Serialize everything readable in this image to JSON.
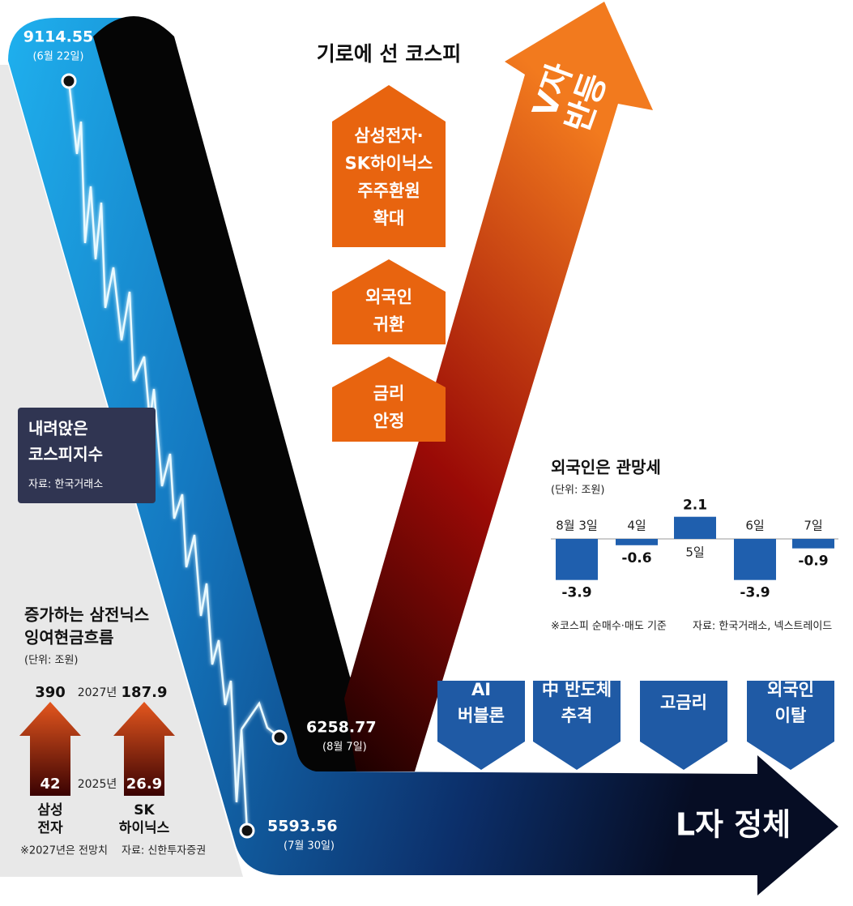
{
  "title": "기로에 선 코스피",
  "v_label": [
    "V자",
    "반등"
  ],
  "l_label": "L자 정체",
  "up_factors": [
    [
      "삼성전자·",
      "SK하이닉스",
      "주주환원",
      "확대"
    ],
    [
      "외국인",
      "귀환"
    ],
    [
      "금리",
      "안정"
    ]
  ],
  "down_factors": [
    [
      "AI",
      "버블론"
    ],
    [
      "中 반도체",
      "추격"
    ],
    [
      "고금리"
    ],
    [
      "외국인",
      "이탈"
    ]
  ],
  "kospi": {
    "label": [
      "내려앉은",
      "코스피지수"
    ],
    "source": "자료: 한국거래소",
    "points": [
      {
        "value": 9114.55,
        "date": "(6월 22일)"
      },
      {
        "value": 5593.56,
        "date": "(7월 30일)"
      },
      {
        "value": 6258.77,
        "date": "(8월 7일)"
      }
    ]
  },
  "cash_flow": {
    "title": [
      "증가하는 삼전닉스",
      "잉여현금흐름"
    ],
    "unit": "(단위: 조원)",
    "years": [
      "2027년",
      "2025년"
    ],
    "companies": [
      {
        "name": [
          "삼성",
          "전자"
        ],
        "values": [
          390,
          42
        ]
      },
      {
        "name": [
          "SK",
          "하이닉스"
        ],
        "values": [
          187.9,
          26.9
        ]
      }
    ],
    "note": "※2027년은 전망치",
    "source": "자료: 신한투자증권"
  },
  "foreign_flow": {
    "type": "bar",
    "title": "외국인은 관망세",
    "unit": "(단위: 조원)",
    "categories": [
      "8월 3일",
      "4일",
      "5일",
      "6일",
      "7일"
    ],
    "values": [
      -3.9,
      -0.6,
      2.1,
      -3.9,
      -0.9
    ],
    "color": "#1f5fae",
    "note": "※코스피 순매수·매도 기준",
    "source": "자료: 한국거래소, 넥스트레이드"
  }
}
